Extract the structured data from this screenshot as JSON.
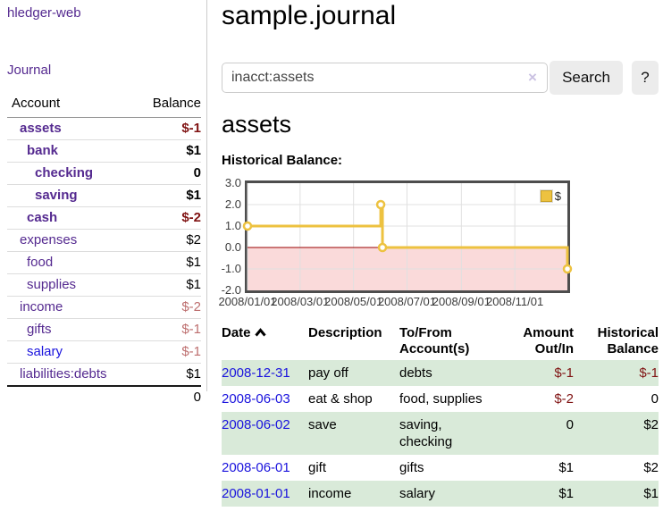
{
  "app": {
    "brand": "hledger-web",
    "nav_journal": "Journal"
  },
  "sidebar": {
    "header": {
      "account": "Account",
      "balance": "Balance"
    },
    "rows": [
      {
        "name": "assets",
        "balance": "$-1"
      },
      {
        "name": "bank",
        "balance": "$1"
      },
      {
        "name": "checking",
        "balance": "0"
      },
      {
        "name": "saving",
        "balance": "$1"
      },
      {
        "name": "cash",
        "balance": "$-2"
      },
      {
        "name": "expenses",
        "balance": "$2"
      },
      {
        "name": "food",
        "balance": "$1"
      },
      {
        "name": "supplies",
        "balance": "$1"
      },
      {
        "name": "income",
        "balance": "$-2"
      },
      {
        "name": "gifts",
        "balance": "$-1"
      },
      {
        "name": "salary",
        "balance": "$-1"
      },
      {
        "name": "liabilities:debts",
        "balance": "$1"
      }
    ],
    "total": "0"
  },
  "main": {
    "title": "sample.journal",
    "search": {
      "value": "inacct:assets",
      "clear": "×",
      "button": "Search",
      "help": "?"
    },
    "account_heading": "assets",
    "chart_label": "Historical Balance:"
  },
  "chart_data": {
    "type": "line",
    "title": "Historical Balance:",
    "legend_label": "$",
    "series": [
      {
        "name": "$",
        "color": "#edc240",
        "step": true,
        "points": [
          {
            "date": "2008-01-01",
            "day": 0,
            "value": 1
          },
          {
            "date": "2008-06-01",
            "day": 152,
            "value": 2
          },
          {
            "date": "2008-06-03",
            "day": 154,
            "value": 0
          },
          {
            "date": "2008-12-31",
            "day": 365,
            "value": -1
          }
        ]
      }
    ],
    "x_ticks": [
      {
        "label": "2008/01/01",
        "day": 0
      },
      {
        "label": "2008/03/01",
        "day": 60
      },
      {
        "label": "2008/05/01",
        "day": 121
      },
      {
        "label": "2008/07/01",
        "day": 182
      },
      {
        "label": "2008/09/01",
        "day": 244
      },
      {
        "label": "2008/11/01",
        "day": 305
      }
    ],
    "x_range_days": [
      0,
      365
    ],
    "y_ticks": [
      3.0,
      2.0,
      1.0,
      0.0,
      -1.0,
      -2.0
    ],
    "ylim": [
      -2,
      3
    ],
    "grid": true,
    "legend_position": "top-right",
    "negative_region_fill": "#fadada",
    "zero_line_color": "#990000",
    "grid_color": "#e0e0e0"
  },
  "table": {
    "headers": {
      "date": "Date",
      "description": "Description",
      "accounts_line1": "To/From",
      "accounts_line2": "Account(s)",
      "amount_line1": "Amount",
      "amount_line2": "Out/In",
      "balance_line1": "Historical",
      "balance_line2": "Balance"
    },
    "rows": [
      {
        "date": "2008-12-31",
        "description": "pay off",
        "accounts": "debts",
        "amount": "$-1",
        "balance": "$-1"
      },
      {
        "date": "2008-06-03",
        "description": "eat & shop",
        "accounts": "food, supplies",
        "amount": "$-2",
        "balance": "0"
      },
      {
        "date": "2008-06-02",
        "description": "save",
        "accounts": "saving, checking",
        "amount": "0",
        "balance": "$2"
      },
      {
        "date": "2008-06-01",
        "description": "gift",
        "accounts": "gifts",
        "amount": "$1",
        "balance": "$2"
      },
      {
        "date": "2008-01-01",
        "description": "income",
        "accounts": "salary",
        "amount": "$1",
        "balance": "$1"
      }
    ]
  }
}
